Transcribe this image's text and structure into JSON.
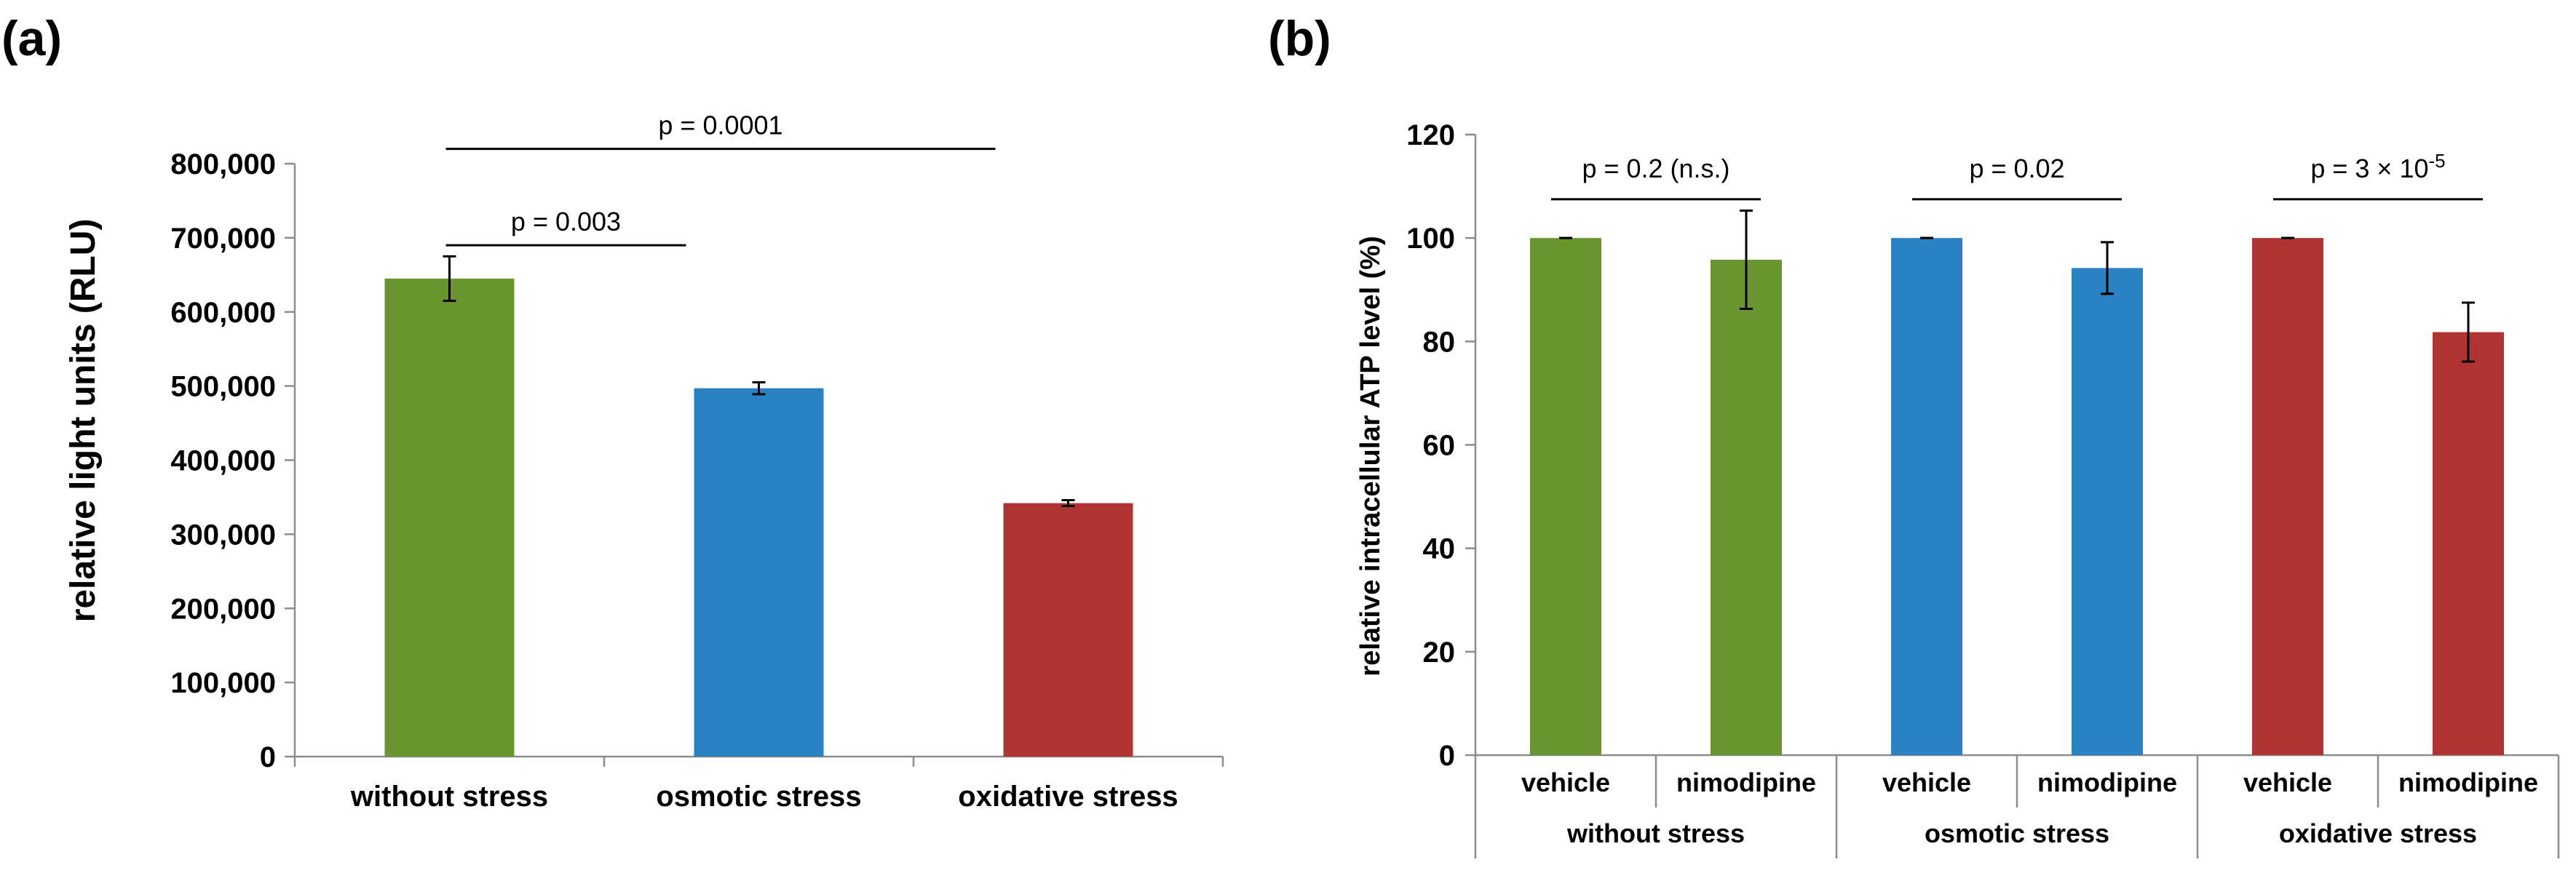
{
  "chart_data": [
    {
      "panel": "(a)",
      "type": "bar",
      "categories": [
        "without stress",
        "osmotic stress",
        "oxidative stress"
      ],
      "values": [
        645000,
        497000,
        342000
      ],
      "errors": [
        30000,
        8000,
        4000
      ],
      "colors": [
        "#6a9430",
        "#2a82c2",
        "#b03434"
      ],
      "ylabel": "relative light units (RLU)",
      "ylim": [
        0,
        800000
      ],
      "yticks": [
        0,
        100000,
        200000,
        300000,
        400000,
        500000,
        600000,
        700000,
        800000
      ],
      "ytick_labels": [
        "0",
        "100,000",
        "200,000",
        "300,000",
        "400,000",
        "500,000",
        "600,000",
        "700,000",
        "800,000"
      ],
      "grid": false,
      "annotations": [
        {
          "text": "p = 0.003",
          "from": 0,
          "to": 1,
          "level": 690000
        },
        {
          "text": "p = 0.0001",
          "from": 0,
          "to": 2,
          "level": 820000
        }
      ]
    },
    {
      "panel": "(b)",
      "type": "bar",
      "groups": [
        "without stress",
        "osmotic stress",
        "oxidative stress"
      ],
      "subcategories": [
        "vehicle",
        "nimodipine"
      ],
      "values": [
        100,
        95.8,
        100,
        94.2,
        100,
        81.8
      ],
      "errors": [
        0,
        9.5,
        0,
        5,
        0,
        5.7
      ],
      "colors": [
        "#6a9430",
        "#6a9430",
        "#2a82c2",
        "#2a82c2",
        "#b03434",
        "#b03434"
      ],
      "ylabel": "relative intracellular ATP  level (%)",
      "ylim": [
        0,
        120
      ],
      "yticks": [
        0,
        20,
        40,
        60,
        80,
        100,
        120
      ],
      "ytick_labels": [
        "0",
        "20",
        "40",
        "60",
        "80",
        "100",
        "120"
      ],
      "grid": false,
      "annotations": [
        {
          "text": "p = 0.2 (n.s.)",
          "group": 0,
          "level": 107.5
        },
        {
          "text": "p = 0.02",
          "group": 1,
          "level": 107.5
        },
        {
          "text_prefix": "p = 3 × 10",
          "superscript": "-5",
          "group": 2,
          "level": 107.5
        }
      ]
    }
  ]
}
